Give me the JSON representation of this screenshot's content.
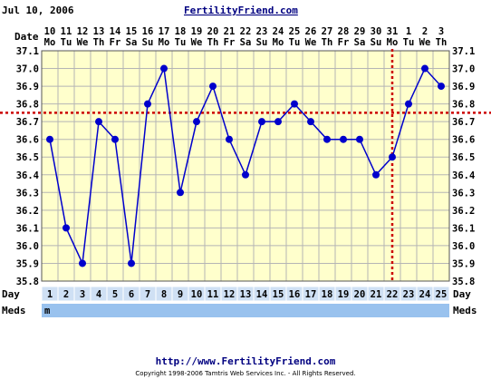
{
  "header": {
    "date": "Jul 10, 2006",
    "site": "FertilityFriend.com"
  },
  "row_labels": {
    "date": "Date",
    "day": "Day",
    "meds": "Meds"
  },
  "footer": {
    "url": "http://www.FertilityFriend.com",
    "copyright": "Copyright 1998-2006 Tamtris Web Services Inc. - All Rights Reserved."
  },
  "colors": {
    "plot_background": "#ffffcc",
    "grid": "#b5b5b5",
    "series": "#0000cc",
    "coverline": "#cc0000",
    "day_row": "#cfe0f4",
    "meds_row": "#99c2ee"
  },
  "chart_data": {
    "type": "line",
    "dates": [
      "10",
      "11",
      "12",
      "13",
      "14",
      "15",
      "16",
      "17",
      "18",
      "19",
      "20",
      "21",
      "22",
      "23",
      "24",
      "25",
      "26",
      "27",
      "28",
      "29",
      "30",
      "31",
      "1",
      "2",
      "3"
    ],
    "weekdays": [
      "Mo",
      "Tu",
      "We",
      "Th",
      "Fr",
      "Sa",
      "Su",
      "Mo",
      "Tu",
      "We",
      "Th",
      "Fr",
      "Sa",
      "Su",
      "Mo",
      "Tu",
      "We",
      "Th",
      "Fr",
      "Sa",
      "Su",
      "Mo",
      "Tu",
      "We",
      "Th"
    ],
    "days": [
      "1",
      "2",
      "3",
      "4",
      "5",
      "6",
      "7",
      "8",
      "9",
      "10",
      "11",
      "12",
      "13",
      "14",
      "15",
      "16",
      "17",
      "18",
      "19",
      "20",
      "21",
      "22",
      "23",
      "24",
      "25"
    ],
    "meds": [
      "m",
      "",
      "",
      "",
      "",
      "",
      "",
      "",
      "",
      "",
      "",
      "",
      "",
      "",
      "",
      "",
      "",
      "",
      "",
      "",
      "",
      "",
      "",
      "",
      ""
    ],
    "series": [
      {
        "values": [
          36.6,
          36.1,
          35.9,
          36.7,
          36.6,
          35.9,
          36.8,
          37.0,
          36.3,
          36.7,
          36.9,
          36.6,
          36.4,
          36.7,
          36.7,
          36.8,
          36.7,
          36.6,
          36.6,
          36.6,
          36.4,
          36.5,
          36.8,
          37.0,
          36.9
        ]
      }
    ],
    "ylim": [
      35.8,
      37.1
    ],
    "yticks": [
      "37.1",
      "37.0",
      "36.9",
      "36.8",
      "36.7",
      "36.6",
      "36.5",
      "36.4",
      "36.3",
      "36.2",
      "36.1",
      "36.0",
      "35.9",
      "35.8"
    ],
    "coverline": 36.75,
    "ovulation_day": 22,
    "grid": true
  }
}
